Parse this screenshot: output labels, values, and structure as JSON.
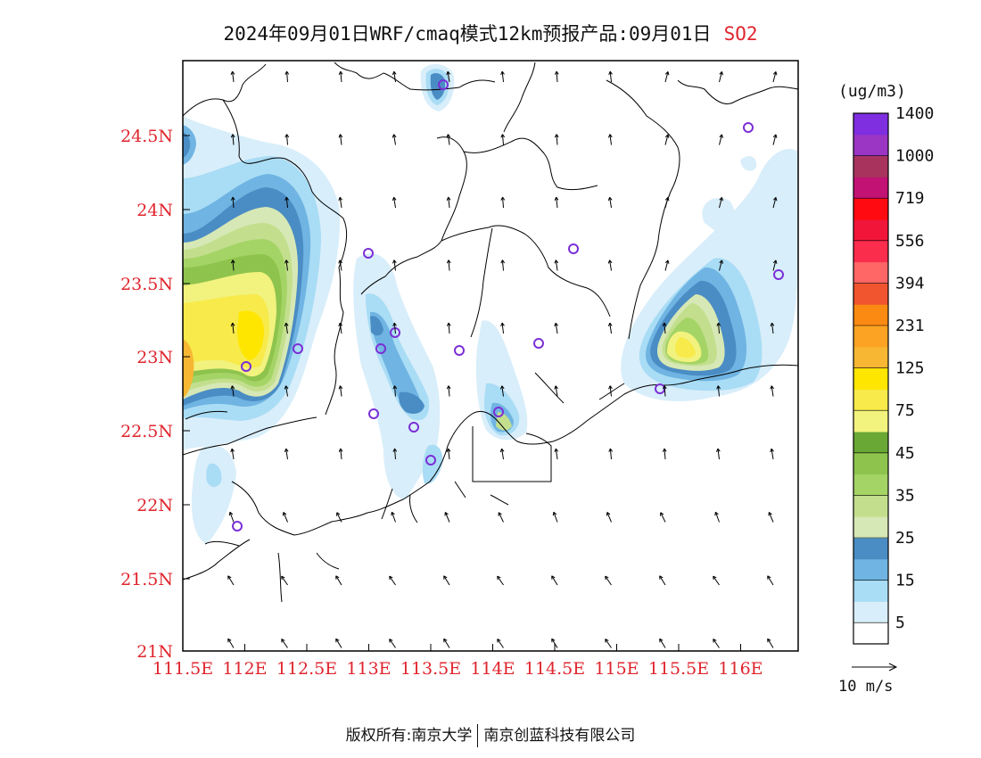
{
  "header": {
    "title": "2024年09月01日WRF/cmaq模式12km预报产品:09月01日",
    "species": "SO2"
  },
  "colorbar": {
    "unit": "(ug/m3)",
    "colors": [
      "#ffffff",
      "#d8eefa",
      "#a9dcf5",
      "#6fb4e2",
      "#4a8cc4",
      "#d6e8b5",
      "#c3df8e",
      "#a5d466",
      "#8ec44d",
      "#6aa835",
      "#f2f27e",
      "#f7ea4a",
      "#ffe600",
      "#f7b733",
      "#fca323",
      "#fb8a12",
      "#f05530",
      "#ff6666",
      "#fa2d4c",
      "#f2153a",
      "#ff0a10",
      "#c21274",
      "#a8345e",
      "#9b35c4",
      "#7f2ee0"
    ],
    "labels": [
      "5",
      "15",
      "25",
      "35",
      "45",
      "75",
      "125",
      "231",
      "394",
      "556",
      "719",
      "1000",
      "1400"
    ]
  },
  "axes": {
    "lon_labels": [
      "111.5E",
      "112E",
      "112.5E",
      "113E",
      "113.5E",
      "114E",
      "114.5E",
      "115E",
      "115.5E",
      "116E"
    ],
    "lat_labels": [
      "24.5N",
      "24N",
      "23.5N",
      "23N",
      "22.5N",
      "22N",
      "21.5N",
      "21N"
    ]
  },
  "wind": {
    "reference": "10 m/s"
  },
  "footer": {
    "left": "版权所有:南京大学",
    "right": "南京创蓝科技有限公司"
  }
}
